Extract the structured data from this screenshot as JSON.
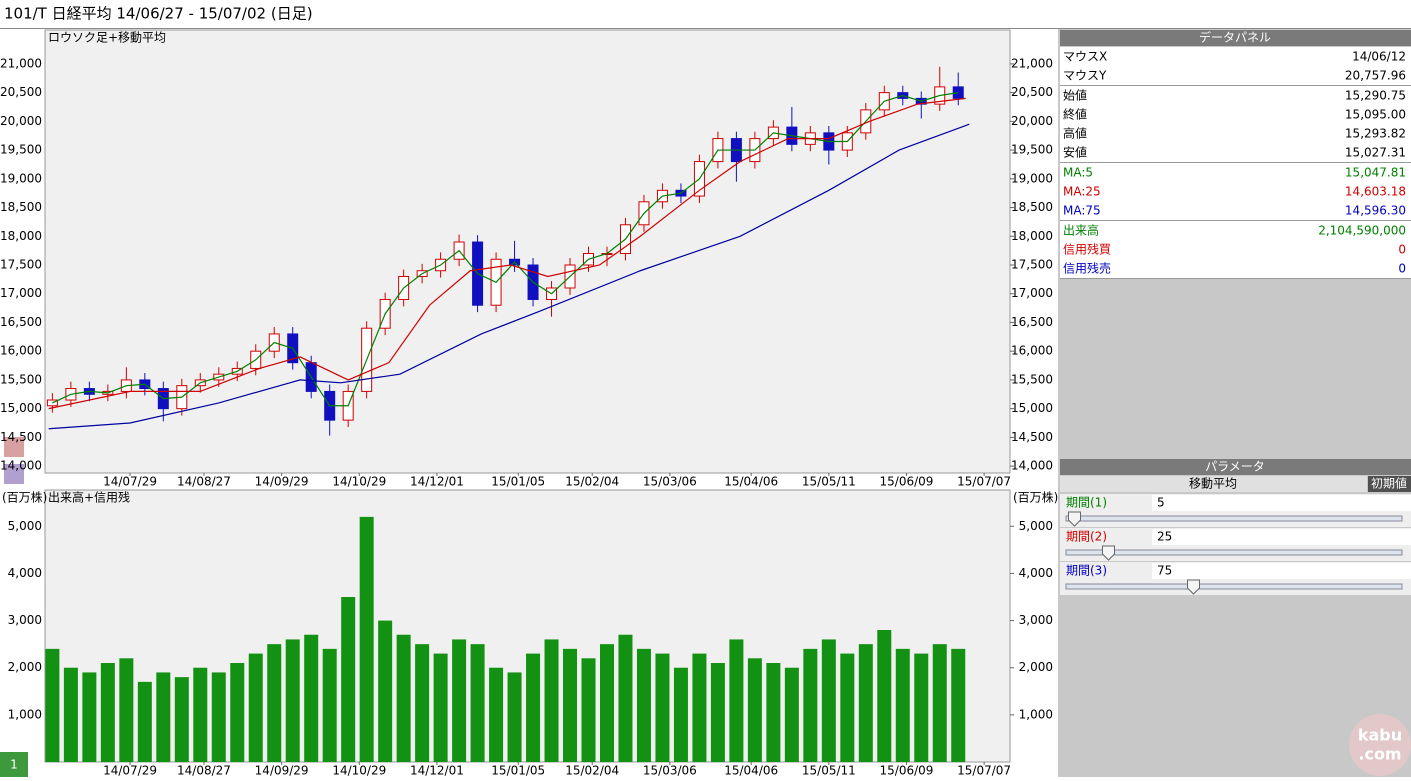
{
  "header": {
    "title": "101/T 日経平均  14/06/27 - 15/07/02 (日足)"
  },
  "chart_data": [
    {
      "type": "candlestick",
      "title": "ロウソク足+移動平均",
      "up_color": "#d00000",
      "down_color": "#1010c0",
      "x": [
        2,
        7,
        12,
        17,
        22,
        27,
        32,
        37,
        42,
        47,
        52,
        57,
        62,
        67,
        72,
        77,
        82,
        87,
        92,
        97,
        102,
        107,
        112,
        117,
        122,
        127,
        132,
        137,
        142,
        147,
        152,
        157,
        162,
        167,
        172,
        177,
        182,
        187,
        192,
        197,
        202,
        207,
        212,
        217,
        222,
        227,
        232,
        237,
        242,
        247
      ],
      "open": [
        15050,
        15150,
        15350,
        15250,
        15300,
        15500,
        15350,
        15000,
        15400,
        15500,
        15600,
        15700,
        16000,
        16300,
        15800,
        15300,
        14800,
        15300,
        16400,
        16900,
        17300,
        17400,
        17600,
        17900,
        16800,
        17600,
        17500,
        16900,
        17100,
        17500,
        17700,
        17700,
        18200,
        18600,
        18800,
        18700,
        19300,
        19700,
        19300,
        19700,
        19900,
        19600,
        19800,
        19500,
        19800,
        20200,
        20500,
        20400,
        20300,
        20600
      ],
      "high": [
        15270,
        15470,
        15470,
        15420,
        15720,
        15620,
        15470,
        15520,
        15620,
        15720,
        15820,
        16120,
        16420,
        16420,
        15920,
        15420,
        15420,
        16520,
        17020,
        17420,
        17520,
        17720,
        18030,
        18020,
        17720,
        17920,
        17620,
        17220,
        17620,
        17820,
        17820,
        18320,
        18720,
        18920,
        18920,
        19420,
        19820,
        19820,
        19820,
        20020,
        20250,
        19920,
        19920,
        19920,
        20320,
        20620,
        20620,
        20520,
        20950,
        20850
      ],
      "low": [
        14930,
        15030,
        15130,
        15130,
        15180,
        15230,
        14780,
        14880,
        15280,
        15380,
        15480,
        15580,
        15880,
        15680,
        15180,
        14530,
        14680,
        15180,
        16280,
        16780,
        17180,
        17280,
        17480,
        16680,
        16680,
        17380,
        16780,
        16600,
        16980,
        17380,
        17480,
        17580,
        18080,
        18480,
        18580,
        18580,
        19180,
        18950,
        19180,
        19580,
        19480,
        19480,
        19250,
        19380,
        19680,
        20080,
        20280,
        20050,
        20180,
        20280
      ],
      "close": [
        15150,
        15350,
        15250,
        15300,
        15500,
        15350,
        15000,
        15400,
        15500,
        15600,
        15700,
        16000,
        16300,
        15800,
        15300,
        14800,
        15300,
        16400,
        16900,
        17300,
        17400,
        17600,
        17900,
        16800,
        17600,
        17500,
        16900,
        17100,
        17500,
        17700,
        17700,
        18200,
        18600,
        18800,
        18700,
        19300,
        19700,
        19300,
        19700,
        19900,
        19600,
        19800,
        19500,
        19800,
        20200,
        20500,
        20400,
        20300,
        20600,
        20400
      ],
      "lines": [
        {
          "color": "#008000",
          "x": [
            2,
            7,
            12,
            17,
            22,
            27,
            32,
            37,
            42,
            47,
            52,
            57,
            62,
            67,
            72,
            77,
            82,
            87,
            92,
            97,
            102,
            107,
            112,
            117,
            122,
            127,
            132,
            137,
            142,
            147,
            152,
            157,
            162,
            167,
            172,
            177,
            182,
            187,
            192,
            197,
            202,
            207,
            212,
            217,
            222,
            227,
            232,
            237,
            242,
            247
          ],
          "values": [
            15100,
            15250,
            15300,
            15275,
            15400,
            15425,
            15175,
            15200,
            15450,
            15550,
            15650,
            15850,
            16150,
            16050,
            15550,
            15050,
            15050,
            15850,
            16650,
            17100,
            17350,
            17500,
            17750,
            17350,
            17200,
            17550,
            17200,
            17000,
            17300,
            17600,
            17700,
            17950,
            18400,
            18700,
            18750,
            19000,
            19500,
            19500,
            19500,
            19800,
            19750,
            19700,
            19650,
            19650,
            20000,
            20350,
            20450,
            20350,
            20450,
            20500
          ]
        },
        {
          "color": "#d00000",
          "x": [
            1,
            23,
            42,
            58,
            69,
            82,
            93,
            104,
            115,
            126,
            136,
            150,
            161,
            177,
            188,
            201,
            212,
            223,
            236,
            249
          ],
          "values": [
            15000,
            15300,
            15300,
            15700,
            15900,
            15500,
            15800,
            16800,
            17400,
            17500,
            17300,
            17500,
            18000,
            18800,
            19300,
            19700,
            19700,
            20000,
            20300,
            20400
          ]
        },
        {
          "color": "#0000a0",
          "x": [
            1,
            23,
            47,
            69,
            80,
            96,
            118,
            134,
            161,
            188,
            212,
            231,
            250
          ],
          "values": [
            14650,
            14750,
            15100,
            15500,
            15450,
            15600,
            16300,
            16700,
            17400,
            18000,
            18800,
            19500,
            19950
          ]
        }
      ],
      "xlim": [
        0,
        261
      ],
      "ylim": [
        13880,
        21590
      ],
      "xticks": [
        {
          "value": 23,
          "label": "14/07/29"
        },
        {
          "value": 43,
          "label": "14/08/27"
        },
        {
          "value": 64,
          "label": "14/09/29"
        },
        {
          "value": 85,
          "label": "14/10/29"
        },
        {
          "value": 106,
          "label": "14/12/01"
        },
        {
          "value": 128,
          "label": "15/01/05"
        },
        {
          "value": 148,
          "label": "15/02/04"
        },
        {
          "value": 169,
          "label": "15/03/06"
        },
        {
          "value": 191,
          "label": "15/04/06"
        },
        {
          "value": 212,
          "label": "15/05/11"
        },
        {
          "value": 233,
          "label": "15/06/09"
        },
        {
          "value": 254,
          "label": "15/07/07"
        }
      ],
      "yticks": [
        {
          "value": 14000,
          "label": "14,000"
        },
        {
          "value": 14500,
          "label": "14,500"
        },
        {
          "value": 15000,
          "label": "15,000"
        },
        {
          "value": 15500,
          "label": "15,500"
        },
        {
          "value": 16000,
          "label": "16,000"
        },
        {
          "value": 16500,
          "label": "16,500"
        },
        {
          "value": 17000,
          "label": "17,000"
        },
        {
          "value": 17500,
          "label": "17,500"
        },
        {
          "value": 18000,
          "label": "18,000"
        },
        {
          "value": 18500,
          "label": "18,500"
        },
        {
          "value": 19000,
          "label": "19,000"
        },
        {
          "value": 19500,
          "label": "19,500"
        },
        {
          "value": 20000,
          "label": "20,000"
        },
        {
          "value": 20500,
          "label": "20,500"
        },
        {
          "value": 21000,
          "label": "21,000"
        }
      ]
    },
    {
      "type": "bar",
      "title": "出来高+信用残",
      "unit": "(百万株)",
      "color": "#139113",
      "x": [
        2,
        7,
        12,
        17,
        22,
        27,
        32,
        37,
        42,
        47,
        52,
        57,
        62,
        67,
        72,
        77,
        82,
        87,
        92,
        97,
        102,
        107,
        112,
        117,
        122,
        127,
        132,
        137,
        142,
        147,
        152,
        157,
        162,
        167,
        172,
        177,
        182,
        187,
        192,
        197,
        202,
        207,
        212,
        217,
        222,
        227,
        232,
        237,
        242,
        247
      ],
      "values": [
        2400,
        2000,
        1900,
        2100,
        2200,
        1700,
        1900,
        1800,
        2000,
        1900,
        2100,
        2300,
        2500,
        2600,
        2700,
        2400,
        3500,
        5200,
        3000,
        2700,
        2500,
        2300,
        2600,
        2500,
        2000,
        1900,
        2300,
        2600,
        2400,
        2200,
        2500,
        2700,
        2400,
        2300,
        2000,
        2300,
        2100,
        2600,
        2200,
        2100,
        2000,
        2400,
        2600,
        2300,
        2500,
        2800,
        2400,
        2300,
        2500,
        2400
      ],
      "xlim": [
        0,
        261
      ],
      "ylim": [
        0,
        5770
      ],
      "xticks": [
        {
          "value": 23,
          "label": "14/07/29"
        },
        {
          "value": 43,
          "label": "14/08/27"
        },
        {
          "value": 64,
          "label": "14/09/29"
        },
        {
          "value": 85,
          "label": "14/10/29"
        },
        {
          "value": 106,
          "label": "14/12/01"
        },
        {
          "value": 128,
          "label": "15/01/05"
        },
        {
          "value": 148,
          "label": "15/02/04"
        },
        {
          "value": 169,
          "label": "15/03/06"
        },
        {
          "value": 191,
          "label": "15/04/06"
        },
        {
          "value": 212,
          "label": "15/05/11"
        },
        {
          "value": 233,
          "label": "15/06/09"
        },
        {
          "value": 254,
          "label": "15/07/07"
        }
      ],
      "yticks": [
        {
          "value": 1000,
          "label": "1,000"
        },
        {
          "value": 2000,
          "label": "2,000"
        },
        {
          "value": 3000,
          "label": "3,000"
        },
        {
          "value": 4000,
          "label": "4,000"
        },
        {
          "value": 5000,
          "label": "5,000"
        }
      ]
    }
  ],
  "data_panel": {
    "title": "データパネル",
    "groups": [
      [
        {
          "label": "マウスX",
          "value": "14/06/12",
          "color": "#000000"
        },
        {
          "label": "マウスY",
          "value": "20,757.96",
          "color": "#000000"
        }
      ],
      [
        {
          "label": "始値",
          "value": "15,290.75",
          "color": "#000000"
        },
        {
          "label": "終値",
          "value": "15,095.00",
          "color": "#000000"
        },
        {
          "label": "高値",
          "value": "15,293.82",
          "color": "#000000"
        },
        {
          "label": "安値",
          "value": "15,027.31",
          "color": "#000000"
        }
      ],
      [
        {
          "label": "MA:5",
          "value": "15,047.81",
          "color": "#008000"
        },
        {
          "label": "MA:25",
          "value": "14,603.18",
          "color": "#d00000"
        },
        {
          "label": "MA:75",
          "value": "14,596.30",
          "color": "#0000c0"
        }
      ],
      [
        {
          "label": "出来高",
          "value": "2,104,590,000",
          "color": "#008000"
        },
        {
          "label": "信用残買",
          "value": "0",
          "color": "#d00000"
        },
        {
          "label": "信用残売",
          "value": "0",
          "color": "#0000c0"
        }
      ]
    ]
  },
  "parameters": {
    "title": "パラメータ",
    "tab": "移動平均",
    "reset": "初期値",
    "items": [
      {
        "label": "期間(1)",
        "value": 5,
        "color": "#008000"
      },
      {
        "label": "期間(2)",
        "value": 25,
        "color": "#d00000"
      },
      {
        "label": "期間(3)",
        "value": 75,
        "color": "#0000c0"
      }
    ]
  },
  "footer": {
    "page": "1",
    "watermark": [
      "kabu",
      ".com"
    ]
  }
}
